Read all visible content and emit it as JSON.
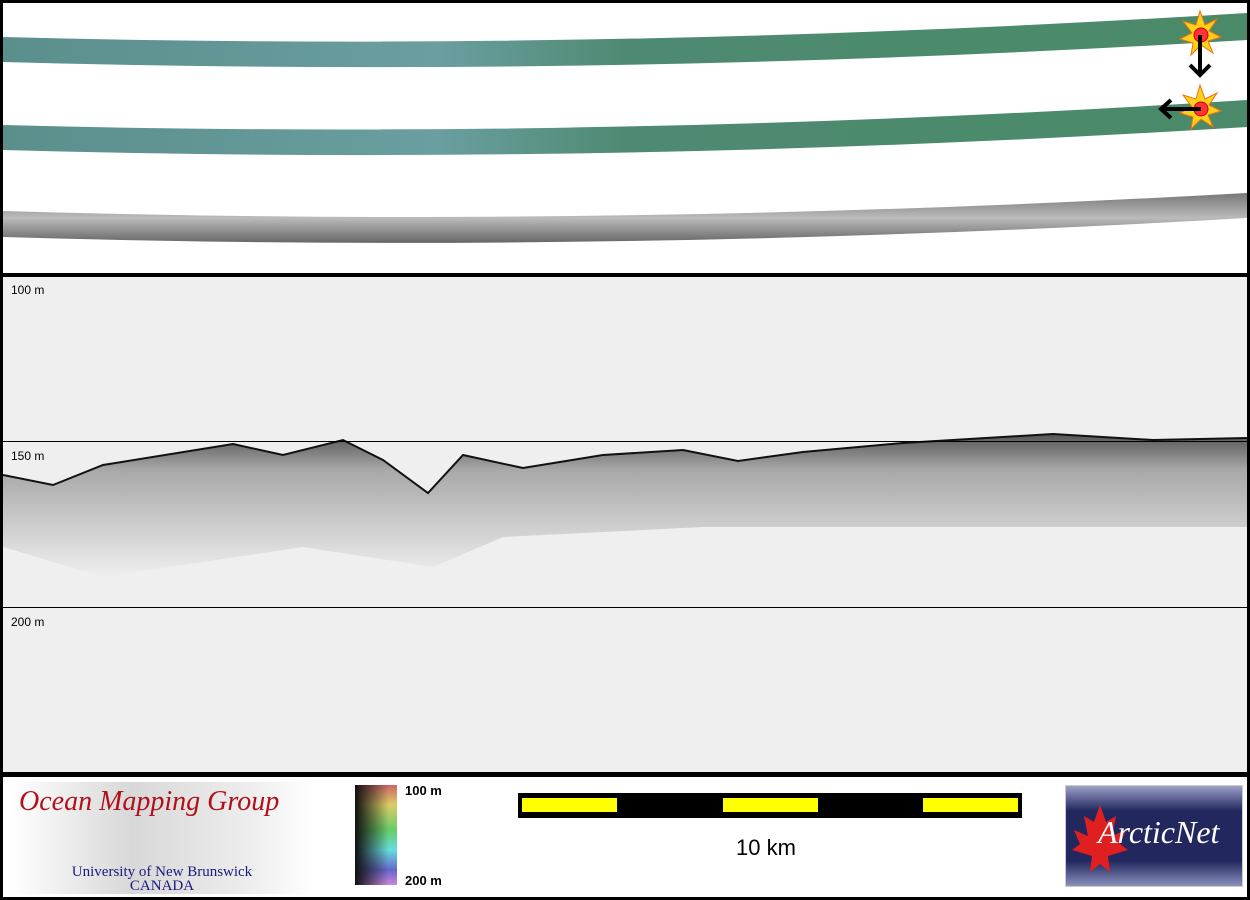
{
  "depth_labels": {
    "d100": "100 m",
    "d150": "150 m",
    "d200": "200 m"
  },
  "legend": {
    "logo_left": {
      "title": "Ocean Mapping Group",
      "line1": "University of New Brunswick",
      "line2": "CANADA"
    },
    "colorbar": {
      "top_label": "100 m",
      "bottom_label": "200 m"
    },
    "scale_bar": {
      "label": "10 km",
      "colors": [
        "#ffff00",
        "#000000"
      ]
    },
    "logo_right": {
      "title": "ArcticNet"
    }
  },
  "colors": {
    "swath": "#4e8a72",
    "backscatter": "#8a8a8a",
    "profile_bg": "#efefef"
  }
}
